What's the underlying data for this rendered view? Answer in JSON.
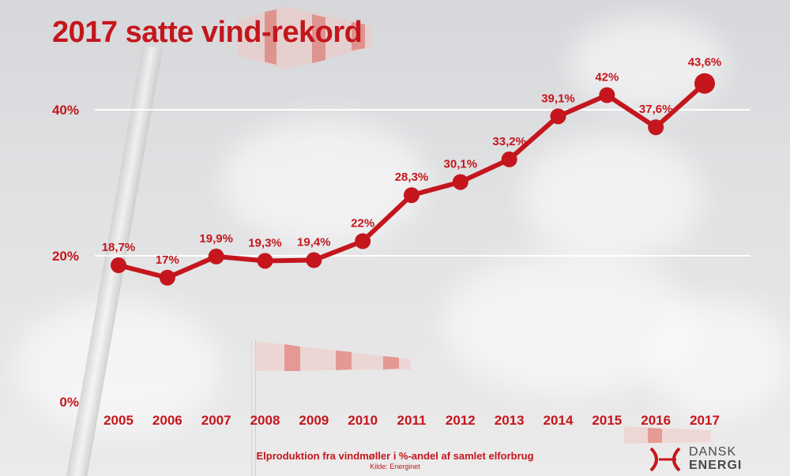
{
  "title": "2017 satte vind-rekord",
  "caption": "Elproduktion fra vindmøller i %-andel af samlet elforbrug",
  "source": "Kilde: Energinet",
  "logo": {
    "line1": "DANSK",
    "line2": "ENERGI"
  },
  "colors": {
    "accent": "#c4161c",
    "grid": "#ffffff"
  },
  "chart_data": {
    "type": "line",
    "title": "2017 satte vind-rekord",
    "xlabel": "",
    "ylabel": "",
    "ylim": [
      0,
      45
    ],
    "yticks": [
      0,
      20,
      40
    ],
    "ytick_labels": [
      "0%",
      "20%",
      "40%"
    ],
    "grid": true,
    "categories": [
      "2005",
      "2006",
      "2007",
      "2008",
      "2009",
      "2010",
      "2011",
      "2012",
      "2013",
      "2014",
      "2015",
      "2016",
      "2017"
    ],
    "values": [
      18.7,
      17,
      19.9,
      19.3,
      19.4,
      22,
      28.3,
      30.1,
      33.2,
      39.1,
      42,
      37.6,
      43.6
    ],
    "labels": [
      "18,7%",
      "17%",
      "19,9%",
      "19,3%",
      "19,4%",
      "22%",
      "28,3%",
      "30,1%",
      "33,2%",
      "39,1%",
      "42%",
      "37,6%",
      "43,6%"
    ]
  }
}
